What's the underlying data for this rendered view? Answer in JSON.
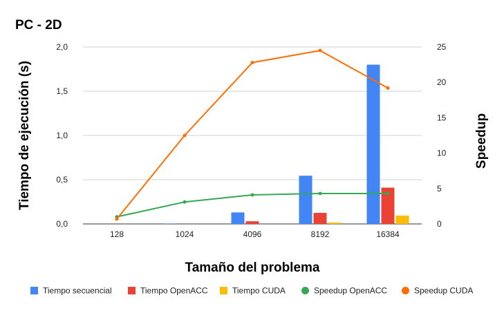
{
  "chart_data": {
    "type": "bar",
    "title": "PC - 2D",
    "xlabel": "Tamaño del problema",
    "ylabel": "Tiempo de ejecución (s)",
    "y2label": "Speedup",
    "categories": [
      "128",
      "1024",
      "4096",
      "8192",
      "16384"
    ],
    "ylim": [
      0,
      2.0
    ],
    "yticks": [
      "0,0",
      "0,5",
      "1,0",
      "1,5",
      "2,0"
    ],
    "y2lim": [
      0,
      25
    ],
    "y2ticks": [
      "0",
      "5",
      "10",
      "15",
      "20",
      "25"
    ],
    "grid": true,
    "legend_position": "bottom",
    "bar_series": [
      {
        "name": "Tiempo secuencial",
        "color": "#4285f4",
        "values": [
          0.0,
          0.005,
          0.13,
          0.545,
          1.8
        ]
      },
      {
        "name": "Tiempo OpenACC",
        "color": "#ea4335",
        "values": [
          0.0,
          0.0,
          0.03,
          0.125,
          0.41
        ]
      },
      {
        "name": "Tiempo CUDA",
        "color": "#fbbc04",
        "values": [
          0.0,
          0.0,
          0.0,
          0.015,
          0.095
        ]
      }
    ],
    "line_series": [
      {
        "name": "Speedup OpenACC",
        "color": "#34a853",
        "axis": "right",
        "values": [
          1.0,
          3.1,
          4.1,
          4.3,
          4.3
        ]
      },
      {
        "name": "Speedup CUDA",
        "color": "#ff6d01",
        "axis": "right",
        "values": [
          0.7,
          12.5,
          22.8,
          24.5,
          19.2
        ]
      }
    ]
  }
}
